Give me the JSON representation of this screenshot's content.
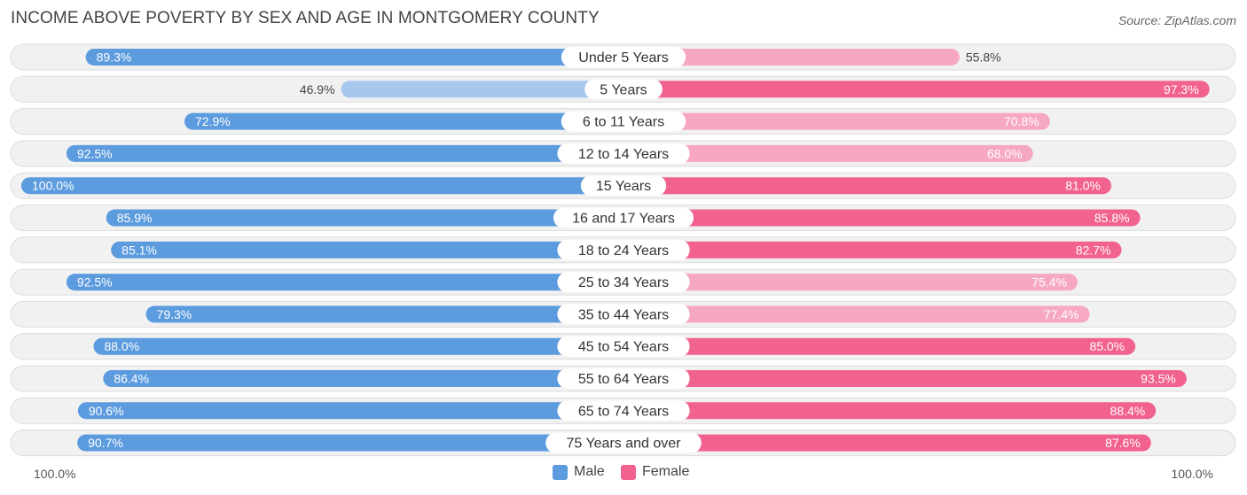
{
  "title": "INCOME ABOVE POVERTY BY SEX AND AGE IN MONTGOMERY COUNTY",
  "source": "Source: ZipAtlas.com",
  "legend": {
    "male_label": "Male",
    "female_label": "Female"
  },
  "axis": {
    "left_label": "100.0%",
    "right_label": "100.0%"
  },
  "colors": {
    "male_strong": "#5b9bde",
    "male_light": "#a7c7ec",
    "female_strong": "#f2628f",
    "female_light": "#f7a8c1",
    "row_bg": "#f1f1f1",
    "row_border": "#dcdcdc"
  },
  "chart_data": {
    "type": "bar",
    "orientation": "horizontal-diverging",
    "categories": [
      "Under 5 Years",
      "5 Years",
      "6 to 11 Years",
      "12 to 14 Years",
      "15 Years",
      "16 and 17 Years",
      "18 to 24 Years",
      "25 to 34 Years",
      "35 to 44 Years",
      "45 to 54 Years",
      "55 to 64 Years",
      "65 to 74 Years",
      "75 Years and over"
    ],
    "series": [
      {
        "name": "Male",
        "values": [
          89.3,
          46.9,
          72.9,
          92.5,
          100.0,
          85.9,
          85.1,
          92.5,
          79.3,
          88.0,
          86.4,
          90.6,
          90.7
        ]
      },
      {
        "name": "Female",
        "values": [
          55.8,
          97.3,
          70.8,
          68.0,
          81.0,
          85.8,
          82.7,
          75.4,
          77.4,
          85.0,
          93.5,
          88.4,
          87.6
        ]
      }
    ],
    "value_labels": {
      "male": [
        "89.3%",
        "46.9%",
        "72.9%",
        "92.5%",
        "100.0%",
        "85.9%",
        "85.1%",
        "92.5%",
        "79.3%",
        "88.0%",
        "86.4%",
        "90.6%",
        "90.7%"
      ],
      "female": [
        "55.8%",
        "97.3%",
        "70.8%",
        "68.0%",
        "81.0%",
        "85.8%",
        "82.7%",
        "75.4%",
        "77.4%",
        "85.0%",
        "93.5%",
        "88.4%",
        "87.6%"
      ]
    },
    "xlim": [
      0,
      100
    ],
    "legend_position": "bottom-center"
  }
}
